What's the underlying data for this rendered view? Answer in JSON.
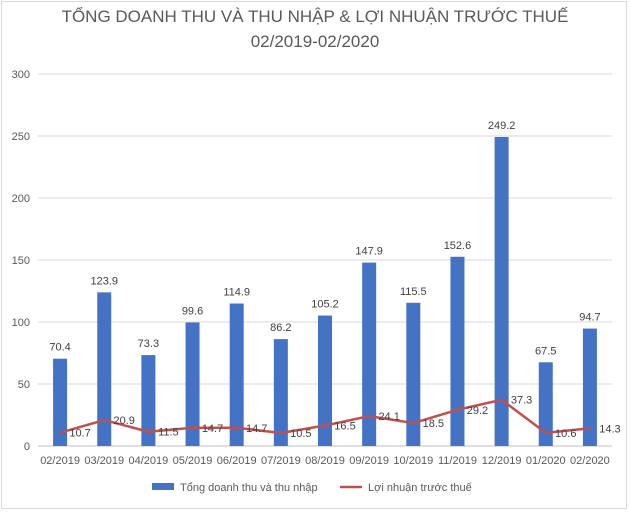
{
  "chart_data": {
    "type": "bar",
    "title": "TỔNG DOANH THU VÀ THU NHẬP & LỢI NHUẬN TRƯỚC THUẾ",
    "subtitle": "02/2019-02/2020",
    "categories": [
      "02/2019",
      "03/2019",
      "04/2019",
      "05/2019",
      "06/2019",
      "07/2019",
      "08/2019",
      "09/2019",
      "10/2019",
      "11/2019",
      "12/2019",
      "01/2020",
      "02/2020"
    ],
    "series": [
      {
        "name": "Tổng doanh thu và thu nhập",
        "type": "bar",
        "color": "#4472c4",
        "values": [
          70.4,
          123.9,
          73.3,
          99.6,
          114.9,
          86.2,
          105.2,
          147.9,
          115.5,
          152.6,
          249.2,
          67.5,
          94.7
        ]
      },
      {
        "name": "Lợi nhuận trước thuế",
        "type": "line",
        "color": "#c0504d",
        "values": [
          10.7,
          20.9,
          11.5,
          14.7,
          14.7,
          10.5,
          16.5,
          24.1,
          18.5,
          29.2,
          37.3,
          10.6,
          14.3
        ]
      }
    ],
    "ylim": [
      0,
      300
    ],
    "yticks": [
      0,
      50,
      100,
      150,
      200,
      250,
      300
    ],
    "grid": true,
    "legend": "bottom",
    "xlabel": "",
    "ylabel": ""
  }
}
